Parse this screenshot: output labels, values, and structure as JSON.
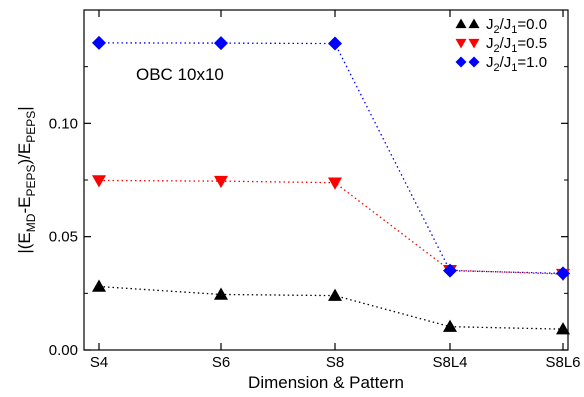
{
  "chart_data": {
    "type": "line",
    "categories": [
      "S4",
      "S6",
      "S8",
      "S8L4",
      "S8L6"
    ],
    "xlabel": "Dimension & Pattern",
    "ylabel": {
      "base": "|(E",
      "sub1": "MD",
      "mid": "-E",
      "sub2": "PEPS",
      "mid2": ")/E",
      "sub3": "PEPS",
      "end": "|"
    },
    "ylim": [
      0,
      0.15
    ],
    "yticks": [
      0,
      0.05,
      0.1
    ],
    "ytick_labels": [
      "0.00",
      "0.05",
      "0.10"
    ],
    "annotation": "OBC 10x10",
    "legend_position": "top-right",
    "grid": false,
    "series": [
      {
        "label_parts": [
          "J",
          "2",
          "/J",
          "1",
          "=0.0"
        ],
        "marker": "triangle-up",
        "color": "#000000",
        "values": [
          0.028,
          0.0245,
          0.024,
          0.0103,
          0.0092
        ]
      },
      {
        "label_parts": [
          "J",
          "2",
          "/J",
          "1",
          "=0.5"
        ],
        "marker": "triangle-down",
        "color": "#ff0000",
        "values": [
          0.0748,
          0.0745,
          0.0738,
          0.0352,
          0.0335
        ]
      },
      {
        "label_parts": [
          "J",
          "2",
          "/J",
          "1",
          "=1.0"
        ],
        "marker": "diamond",
        "color": "#0000ff",
        "values": [
          0.1355,
          0.1354,
          0.1352,
          0.035,
          0.0338
        ]
      }
    ]
  }
}
